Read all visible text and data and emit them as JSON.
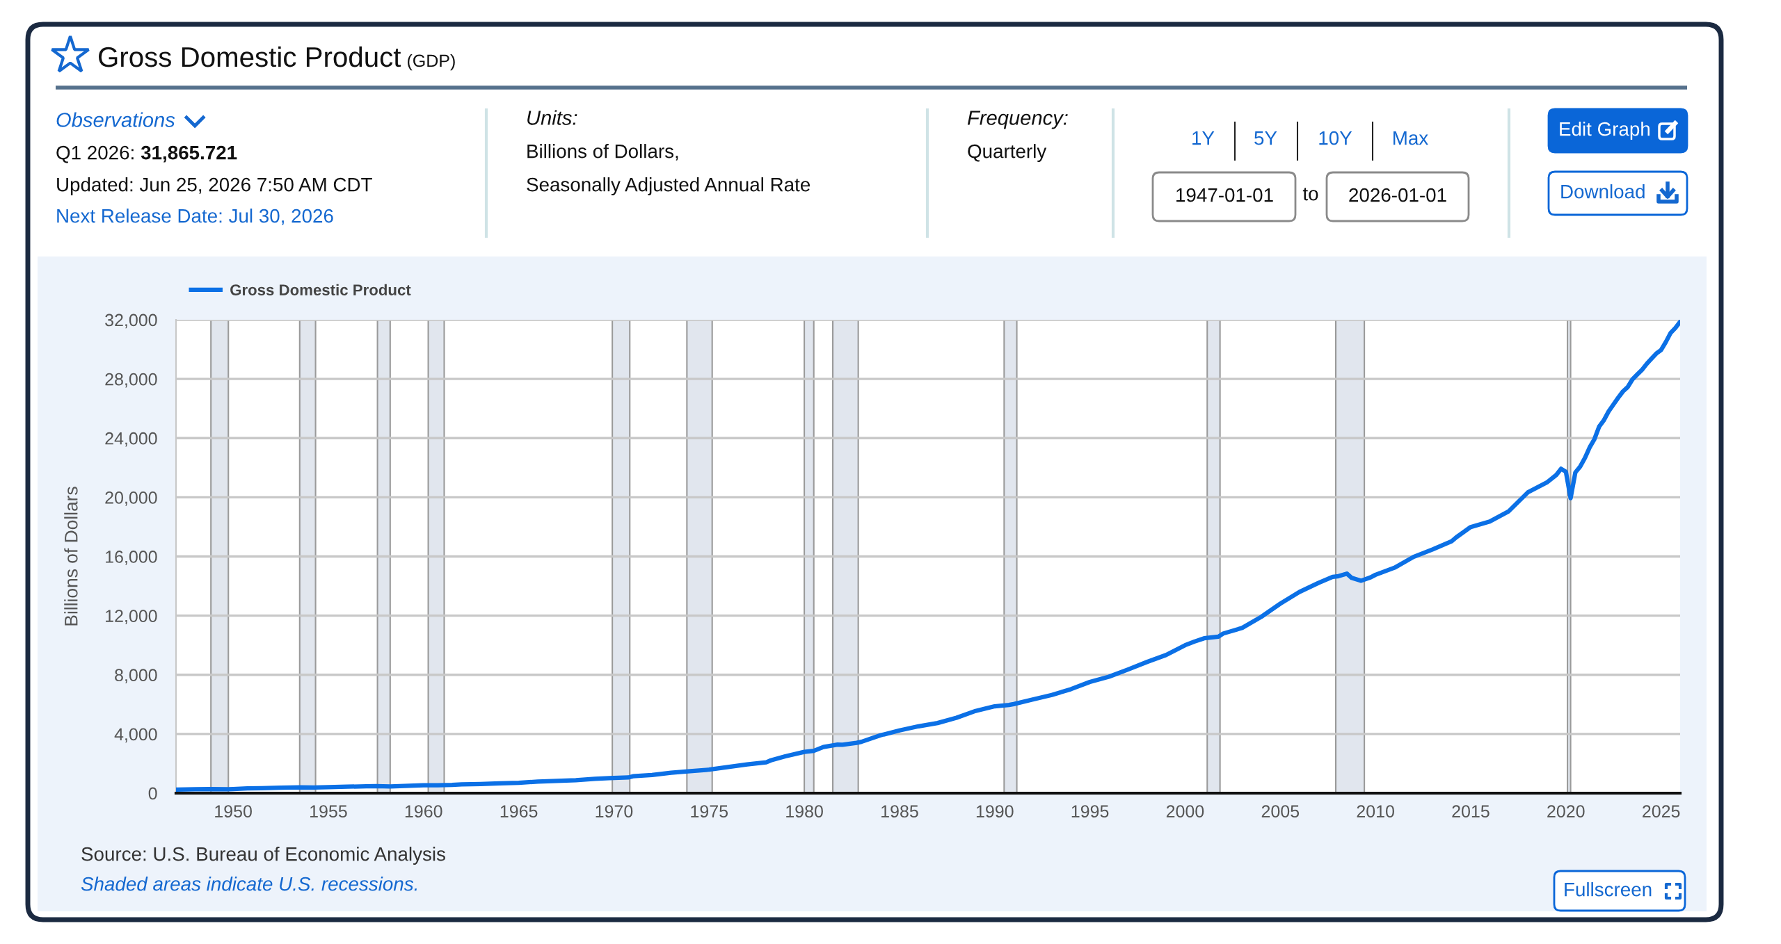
{
  "chart_data": [
    {
      "type": "other",
      "title": "Gross Domestic Product",
      "subtitle": "(GDP)",
      "annotations": [
        "Observations",
        "Q1 2026:",
        "31,865.721",
        "Updated: Jun 25, 2026 7:50 AM CDT",
        "Next Release Date: Jul 30, 2026",
        "Units:",
        "Billions of Dollars,",
        "Seasonally Adjusted Annual Rate",
        "Frequency:",
        "Quarterly",
        "1Y",
        "5Y",
        "10Y",
        "Max",
        "1947-01-01",
        "to",
        "2026-01-01",
        "Edit Graph",
        "Download",
        "Fullscreen"
      ]
    },
    {
      "type": "line",
      "ylabel": "Billions of Dollars",
      "series": [
        {
          "name": "Gross Domestic Product",
          "color": "#0b70e6",
          "x": [
            "1947-01-01",
            "1948-01-01",
            "1948-10-01",
            "1949-10-01",
            "1950-01-01",
            "1950-10-01",
            "1951-07-01",
            "1952-07-01",
            "1953-07-01",
            "1954-04-01",
            "1955-01-01",
            "1956-01-01",
            "1957-01-01",
            "1957-07-01",
            "1958-04-01",
            "1959-01-01",
            "1960-01-01",
            "1960-10-01",
            "1961-07-01",
            "1962-01-01",
            "1963-01-01",
            "1964-01-01",
            "1965-01-01",
            "1966-01-01",
            "1967-01-01",
            "1968-01-01",
            "1969-01-01",
            "1969-10-01",
            "1970-10-01",
            "1971-01-01",
            "1972-01-01",
            "1973-01-01",
            "1974-01-01",
            "1975-01-01",
            "1976-01-01",
            "1977-01-01",
            "1978-01-01",
            "1978-04-01",
            "1979-01-01",
            "1980-01-01",
            "1980-07-01",
            "1981-01-01",
            "1981-10-01",
            "1982-01-01",
            "1982-10-01",
            "1983-01-01",
            "1984-01-01",
            "1985-01-01",
            "1986-01-01",
            "1987-01-01",
            "1988-01-01",
            "1989-01-01",
            "1990-01-01",
            "1990-10-01",
            "1991-01-01",
            "1992-01-01",
            "1993-01-01",
            "1994-01-01",
            "1995-01-01",
            "1996-01-01",
            "1997-01-01",
            "1998-01-01",
            "1999-01-01",
            "2000-01-01",
            "2000-07-01",
            "2001-01-01",
            "2001-10-01",
            "2002-01-01",
            "2003-01-01",
            "2004-01-01",
            "2005-01-01",
            "2006-01-01",
            "2007-01-01",
            "2007-10-01",
            "2008-01-01",
            "2008-07-01",
            "2008-10-01",
            "2009-04-01",
            "2009-10-01",
            "2010-01-01",
            "2011-01-01",
            "2012-01-01",
            "2013-01-01",
            "2014-01-01",
            "2014-04-01",
            "2015-01-01",
            "2016-01-01",
            "2017-01-01",
            "2018-01-01",
            "2019-01-01",
            "2019-07-01",
            "2019-10-01",
            "2020-01-01",
            "2020-04-01",
            "2020-07-01",
            "2020-10-01",
            "2021-01-01",
            "2021-04-01",
            "2021-07-01",
            "2021-10-01",
            "2022-01-01",
            "2022-04-01",
            "2022-07-01",
            "2022-10-01",
            "2023-01-01",
            "2023-04-01",
            "2023-07-01",
            "2023-10-01",
            "2024-01-01",
            "2024-04-01",
            "2024-07-01",
            "2024-10-01",
            "2025-01-01",
            "2025-04-01",
            "2025-07-01",
            "2025-10-01",
            "2026-01-01"
          ],
          "values": [
            240,
            260,
            280,
            270,
            280,
            320,
            340,
            370,
            390,
            380,
            400,
            440,
            460,
            470,
            450,
            490,
            540,
            540,
            560,
            590,
            620,
            660,
            700,
            780,
            830,
            880,
            970,
            1020,
            1060,
            1140,
            1230,
            1380,
            1490,
            1590,
            1770,
            1940,
            2090,
            2220,
            2490,
            2790,
            2860,
            3120,
            3280,
            3270,
            3400,
            3470,
            3910,
            4240,
            4520,
            4740,
            5100,
            5560,
            5870,
            5960,
            6020,
            6330,
            6640,
            7030,
            7520,
            7870,
            8360,
            8870,
            9340,
            10000,
            10250,
            10470,
            10580,
            10790,
            11170,
            11920,
            12810,
            13600,
            14210,
            14620,
            14650,
            14840,
            14550,
            14360,
            14590,
            14760,
            15240,
            15970,
            16480,
            17030,
            17300,
            17990,
            18360,
            19060,
            20330,
            21000,
            21510,
            21930,
            21730,
            19940,
            21680,
            22070,
            22660,
            23370,
            23920,
            24780,
            25220,
            25810,
            26270,
            26730,
            27160,
            27450,
            27970,
            28300,
            28620,
            29020,
            29370,
            29720,
            29960,
            30490,
            31100,
            31440,
            31865.721
          ]
        }
      ],
      "xlim": [
        "1947-01-01",
        "2026-01-01"
      ],
      "xticks": [
        "1950",
        "1955",
        "1960",
        "1965",
        "1970",
        "1975",
        "1980",
        "1985",
        "1990",
        "1995",
        "2000",
        "2005",
        "2010",
        "2015",
        "2020",
        "2025"
      ],
      "ylim": [
        0,
        32000
      ],
      "yticks": [
        0,
        {
          "value": 4000,
          "label": "4,000"
        },
        {
          "value": 8000,
          "label": "8,000"
        },
        {
          "value": 12000,
          "label": "12,000"
        },
        {
          "value": 16000,
          "label": "16,000"
        },
        {
          "value": 20000,
          "label": "20,000"
        },
        {
          "value": 24000,
          "label": "24,000"
        },
        {
          "value": 28000,
          "label": "28,000"
        },
        {
          "value": 32000,
          "label": "32,000"
        }
      ],
      "grid": "y",
      "legend": "top left",
      "line_style": "solid",
      "bands": [
        {
          "axis": "x",
          "from": "1948-11-01",
          "to": "1949-10-01",
          "color": "#e1e6ee"
        },
        {
          "axis": "x",
          "from": "1953-07-01",
          "to": "1954-05-01",
          "color": "#e1e6ee"
        },
        {
          "axis": "x",
          "from": "1957-08-01",
          "to": "1958-04-01",
          "color": "#e1e6ee"
        },
        {
          "axis": "x",
          "from": "1960-04-01",
          "to": "1961-02-01",
          "color": "#e1e6ee"
        },
        {
          "axis": "x",
          "from": "1969-12-01",
          "to": "1970-11-01",
          "color": "#e1e6ee"
        },
        {
          "axis": "x",
          "from": "1973-11-01",
          "to": "1975-03-01",
          "color": "#e1e6ee"
        },
        {
          "axis": "x",
          "from": "1980-01-01",
          "to": "1980-07-01",
          "color": "#e1e6ee"
        },
        {
          "axis": "x",
          "from": "1981-07-01",
          "to": "1982-11-01",
          "color": "#e1e6ee"
        },
        {
          "axis": "x",
          "from": "1990-07-01",
          "to": "1991-03-01",
          "color": "#e1e6ee"
        },
        {
          "axis": "x",
          "from": "2001-03-01",
          "to": "2001-11-01",
          "color": "#e1e6ee"
        },
        {
          "axis": "x",
          "from": "2007-12-01",
          "to": "2009-06-01",
          "color": "#e1e6ee"
        },
        {
          "axis": "x",
          "from": "2020-02-01",
          "to": "2020-04-01",
          "color": "#e1e6ee"
        }
      ],
      "annotations": [
        "Source: U.S. Bureau of Economic Analysis",
        "Shaded areas indicate U.S. recessions."
      ]
    }
  ]
}
